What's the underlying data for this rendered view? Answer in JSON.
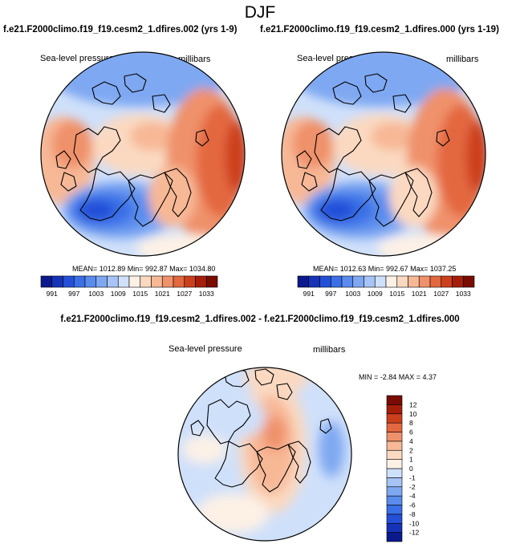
{
  "figure": {
    "title": "DJF",
    "panel_variable": "Sea-level pressure",
    "panel_units": "millibars"
  },
  "chart_data": [
    {
      "type": "heatmap",
      "name": "case-a-map",
      "title": "f.e21.F2000climo.f19_f19.cesm2_1.dfires.002 (yrs 1-9)",
      "variable": "Sea-level pressure",
      "units": "millibars",
      "projection": "north-polar-stereographic",
      "stats_text": "MEAN= 1012.89  Min= 992.87  Max= 1034.80",
      "stats": {
        "mean": 1012.89,
        "min": 992.87,
        "max": 1034.8
      },
      "colorbar": {
        "orientation": "horizontal",
        "levels": [
          991,
          994,
          997,
          1000,
          1003,
          1006,
          1009,
          1012,
          1015,
          1018,
          1021,
          1024,
          1027,
          1030,
          1033
        ],
        "tick_labels": [
          "991",
          "997",
          "1003",
          "1009",
          "1015",
          "1021",
          "1027",
          "1033"
        ],
        "colors": [
          "#0a1a8c",
          "#1633b8",
          "#2450d8",
          "#3a6fe6",
          "#5a8ced",
          "#7fa8f2",
          "#a6c4f7",
          "#cfe0fa",
          "#fdf1e6",
          "#fbd9c1",
          "#f7b896",
          "#ef916b",
          "#e3683f",
          "#cc3f1c",
          "#a51e0a",
          "#7a0b00"
        ]
      }
    },
    {
      "type": "heatmap",
      "name": "case-b-map",
      "title": "f.e21.F2000climo.f19_f19.cesm2_1.dfires.000 (yrs 1-19)",
      "variable": "Sea-level pressure",
      "units": "millibars",
      "projection": "north-polar-stereographic",
      "stats_text": "MEAN= 1012.63  Min= 992.67  Max= 1037.25",
      "stats": {
        "mean": 1012.63,
        "min": 992.67,
        "max": 1037.25
      },
      "colorbar": {
        "orientation": "horizontal",
        "levels": [
          991,
          994,
          997,
          1000,
          1003,
          1006,
          1009,
          1012,
          1015,
          1018,
          1021,
          1024,
          1027,
          1030,
          1033
        ],
        "tick_labels": [
          "991",
          "997",
          "1003",
          "1009",
          "1015",
          "1021",
          "1027",
          "1033"
        ],
        "colors": [
          "#0a1a8c",
          "#1633b8",
          "#2450d8",
          "#3a6fe6",
          "#5a8ced",
          "#7fa8f2",
          "#a6c4f7",
          "#cfe0fa",
          "#fdf1e6",
          "#fbd9c1",
          "#f7b896",
          "#ef916b",
          "#e3683f",
          "#cc3f1c",
          "#a51e0a",
          "#7a0b00"
        ]
      }
    },
    {
      "type": "heatmap",
      "name": "difference-map",
      "title": "f.e21.F2000climo.f19_f19.cesm2_1.dfires.002 - f.e21.F2000climo.f19_f19.cesm2_1.dfires.000",
      "variable": "Sea-level pressure",
      "units": "millibars",
      "projection": "north-polar-stereographic",
      "stats_text": "MIN = -2.84 MAX =  4.37",
      "stats": {
        "min": -2.84,
        "max": 4.37
      },
      "colorbar": {
        "orientation": "vertical",
        "levels": [
          -12,
          -10,
          -8,
          -6,
          -4,
          -2,
          -1,
          0,
          1,
          2,
          4,
          6,
          8,
          10,
          12
        ],
        "tick_labels": [
          "12",
          "10",
          "8",
          "6",
          "4",
          "2",
          "1",
          "0",
          "-1",
          "-2",
          "-4",
          "-6",
          "-8",
          "-10",
          "-12"
        ],
        "colors": [
          "#0a1a8c",
          "#1633b8",
          "#2450d8",
          "#3a6fe6",
          "#5a8ced",
          "#7fa8f2",
          "#a6c4f7",
          "#cfe0fa",
          "#fdf1e6",
          "#fbd9c1",
          "#f7b896",
          "#ef916b",
          "#e3683f",
          "#cc3f1c",
          "#a51e0a",
          "#7a0b00"
        ]
      }
    }
  ]
}
